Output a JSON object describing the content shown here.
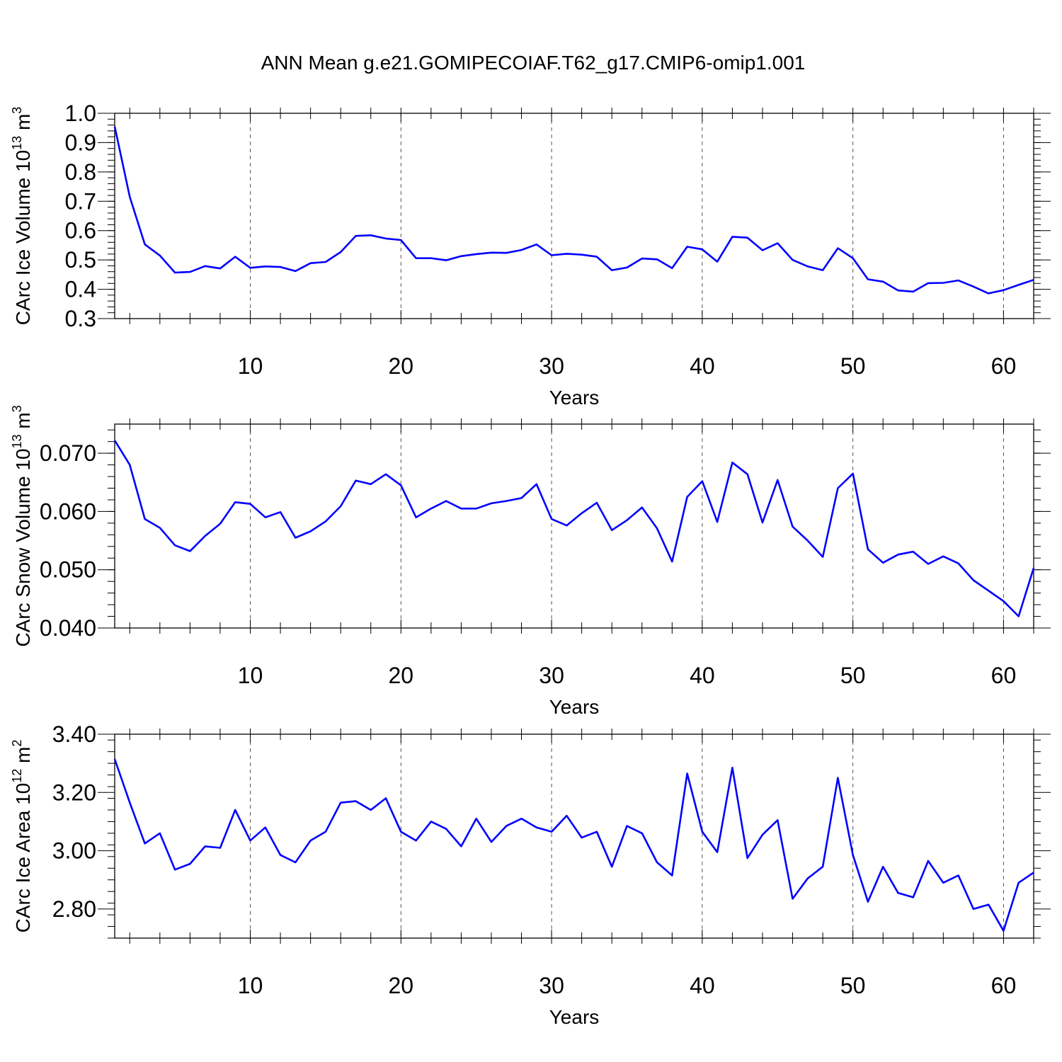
{
  "title": "ANN Mean g.e21.GOMIPECOIAF.T62_g17.CMIP6-omip1.001",
  "colors": {
    "line": "#0000ff",
    "axes": "#000000",
    "grid": "#555555"
  },
  "chart_data": [
    {
      "type": "line",
      "xlabel": "Years",
      "ylabel": "CArc Ice Volume 10",
      "ylabel_sup": "13",
      "ylabel_unit": "m",
      "ylabel_unit_sup": "3",
      "xlim": [
        1,
        62
      ],
      "ylim": [
        0.3,
        1.0
      ],
      "grid": "vertical dashed at major ticks",
      "x_ticks": [
        10,
        20,
        30,
        40,
        50,
        60
      ],
      "x_tick_labels": [
        "10",
        "20",
        "30",
        "40",
        "50",
        "60"
      ],
      "y_ticks": [
        0.3,
        0.4,
        0.5,
        0.6,
        0.7,
        0.8,
        0.9,
        1.0
      ],
      "y_tick_labels": [
        "0.3",
        "0.4",
        "0.5",
        "0.6",
        "0.7",
        "0.8",
        "0.9",
        "1.0"
      ],
      "y_minor_step": 0.02,
      "x": [
        1,
        2,
        3,
        4,
        5,
        6,
        7,
        8,
        9,
        10,
        11,
        12,
        13,
        14,
        15,
        16,
        17,
        18,
        19,
        20,
        21,
        22,
        23,
        24,
        25,
        26,
        27,
        28,
        29,
        30,
        31,
        32,
        33,
        34,
        35,
        36,
        37,
        38,
        39,
        40,
        41,
        42,
        43,
        44,
        45,
        46,
        47,
        48,
        49,
        50,
        51,
        52,
        53,
        54,
        55,
        56,
        57,
        58,
        59,
        60,
        61,
        62
      ],
      "values": [
        0.955,
        0.715,
        0.553,
        0.515,
        0.457,
        0.459,
        0.479,
        0.471,
        0.511,
        0.473,
        0.478,
        0.476,
        0.462,
        0.489,
        0.493,
        0.527,
        0.582,
        0.584,
        0.573,
        0.568,
        0.506,
        0.506,
        0.499,
        0.513,
        0.52,
        0.525,
        0.524,
        0.534,
        0.553,
        0.516,
        0.521,
        0.518,
        0.511,
        0.465,
        0.474,
        0.505,
        0.502,
        0.472,
        0.545,
        0.536,
        0.494,
        0.579,
        0.576,
        0.533,
        0.557,
        0.5,
        0.478,
        0.465,
        0.54,
        0.506,
        0.434,
        0.426,
        0.396,
        0.392,
        0.421,
        0.422,
        0.43,
        0.409,
        0.386,
        0.397,
        0.415,
        0.432
      ]
    },
    {
      "type": "line",
      "xlabel": "Years",
      "ylabel": "CArc Snow Volume 10",
      "ylabel_sup": "13",
      "ylabel_unit": "m",
      "ylabel_unit_sup": "3",
      "xlim": [
        1,
        62
      ],
      "ylim": [
        0.04,
        0.075
      ],
      "grid": "vertical dashed at major ticks",
      "x_ticks": [
        10,
        20,
        30,
        40,
        50,
        60
      ],
      "x_tick_labels": [
        "10",
        "20",
        "30",
        "40",
        "50",
        "60"
      ],
      "y_ticks": [
        0.04,
        0.05,
        0.06,
        0.07
      ],
      "y_tick_labels": [
        "0.040",
        "0.050",
        "0.060",
        "0.070"
      ],
      "y_minor_step": 0.002,
      "x": [
        1,
        2,
        3,
        4,
        5,
        6,
        7,
        8,
        9,
        10,
        11,
        12,
        13,
        14,
        15,
        16,
        17,
        18,
        19,
        20,
        21,
        22,
        23,
        24,
        25,
        26,
        27,
        28,
        29,
        30,
        31,
        32,
        33,
        34,
        35,
        36,
        37,
        38,
        39,
        40,
        41,
        42,
        43,
        44,
        45,
        46,
        47,
        48,
        49,
        50,
        51,
        52,
        53,
        54,
        55,
        56,
        57,
        58,
        59,
        60,
        61,
        62
      ],
      "values": [
        0.0722,
        0.068,
        0.0587,
        0.0572,
        0.0542,
        0.0532,
        0.0558,
        0.0579,
        0.0616,
        0.0613,
        0.059,
        0.0599,
        0.0555,
        0.0566,
        0.0583,
        0.0609,
        0.0653,
        0.0647,
        0.0664,
        0.0645,
        0.059,
        0.0605,
        0.0618,
        0.0605,
        0.0605,
        0.0614,
        0.0618,
        0.0623,
        0.0647,
        0.0587,
        0.0576,
        0.0597,
        0.0615,
        0.0568,
        0.0585,
        0.0607,
        0.0571,
        0.0514,
        0.0625,
        0.0652,
        0.0582,
        0.0684,
        0.0664,
        0.0581,
        0.0654,
        0.0574,
        0.055,
        0.0522,
        0.064,
        0.0665,
        0.0535,
        0.0512,
        0.0526,
        0.0531,
        0.051,
        0.0523,
        0.0511,
        0.0482,
        0.0464,
        0.0446,
        0.042,
        0.0503
      ]
    },
    {
      "type": "line",
      "xlabel": "Years",
      "ylabel": "CArc Ice Area 10",
      "ylabel_sup": "12",
      "ylabel_unit": "m",
      "ylabel_unit_sup": "2",
      "xlim": [
        1,
        62
      ],
      "ylim": [
        2.7,
        3.4
      ],
      "grid": "vertical dashed at major ticks",
      "x_ticks": [
        10,
        20,
        30,
        40,
        50,
        60
      ],
      "x_tick_labels": [
        "10",
        "20",
        "30",
        "40",
        "50",
        "60"
      ],
      "y_ticks": [
        2.8,
        3.0,
        3.2,
        3.4
      ],
      "y_tick_labels": [
        "2.80",
        "3.00",
        "3.20",
        "3.40"
      ],
      "y_minor_step": 0.04,
      "x": [
        1,
        2,
        3,
        4,
        5,
        6,
        7,
        8,
        9,
        10,
        11,
        12,
        13,
        14,
        15,
        16,
        17,
        18,
        19,
        20,
        21,
        22,
        23,
        24,
        25,
        26,
        27,
        28,
        29,
        30,
        31,
        32,
        33,
        34,
        35,
        36,
        37,
        38,
        39,
        40,
        41,
        42,
        43,
        44,
        45,
        46,
        47,
        48,
        49,
        50,
        51,
        52,
        53,
        54,
        55,
        56,
        57,
        58,
        59,
        60,
        61,
        62
      ],
      "values": [
        3.315,
        3.165,
        3.025,
        3.06,
        2.935,
        2.955,
        3.015,
        3.01,
        3.14,
        3.035,
        3.08,
        2.985,
        2.96,
        3.035,
        3.065,
        3.165,
        3.17,
        3.14,
        3.18,
        3.065,
        3.035,
        3.1,
        3.075,
        3.015,
        3.11,
        3.03,
        3.085,
        3.11,
        3.08,
        3.065,
        3.12,
        3.045,
        3.065,
        2.945,
        3.085,
        3.06,
        2.96,
        2.915,
        3.265,
        3.065,
        2.995,
        3.285,
        2.975,
        3.055,
        3.105,
        2.835,
        2.905,
        2.945,
        3.25,
        2.985,
        2.825,
        2.945,
        2.855,
        2.84,
        2.965,
        2.89,
        2.915,
        2.8,
        2.815,
        2.725,
        2.89,
        2.925
      ]
    }
  ]
}
